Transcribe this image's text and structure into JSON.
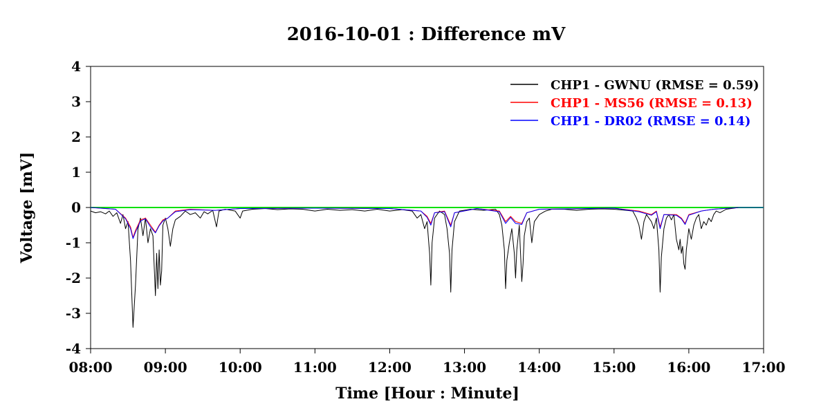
{
  "chart_data": {
    "type": "line",
    "title": "2016-10-01 : Difference mV",
    "xlabel": "Time  [Hour : Minute]",
    "ylabel": "Voltage  [mV]",
    "xlim": [
      "08:00",
      "17:00"
    ],
    "ylim": [
      -4,
      4
    ],
    "x_ticks": [
      "08:00",
      "09:00",
      "10:00",
      "11:00",
      "12:00",
      "13:00",
      "14:00",
      "15:00",
      "16:00",
      "17:00"
    ],
    "y_ticks": [
      "4",
      "3",
      "2",
      "1",
      "0",
      "-1",
      "-2",
      "-3",
      "-4"
    ],
    "zero_line_color": "#00e000",
    "legend_position": "top-right",
    "grid": false,
    "series": [
      {
        "name": "CHP1 - GWNU (RMSE = 0.59)",
        "color": "#000000",
        "points": [
          [
            "08:00",
            -0.1
          ],
          [
            "08:04",
            -0.15
          ],
          [
            "08:08",
            -0.12
          ],
          [
            "08:12",
            -0.18
          ],
          [
            "08:15",
            -0.1
          ],
          [
            "08:18",
            -0.25
          ],
          [
            "08:21",
            -0.15
          ],
          [
            "08:24",
            -0.45
          ],
          [
            "08:26",
            -0.2
          ],
          [
            "08:28",
            -0.6
          ],
          [
            "08:30",
            -0.4
          ],
          [
            "08:32",
            -1.5
          ],
          [
            "08:34",
            -3.4
          ],
          [
            "08:36",
            -2.2
          ],
          [
            "08:38",
            -0.6
          ],
          [
            "08:40",
            -0.3
          ],
          [
            "08:42",
            -0.8
          ],
          [
            "08:44",
            -0.3
          ],
          [
            "08:46",
            -1.0
          ],
          [
            "08:48",
            -0.6
          ],
          [
            "08:50",
            -0.8
          ],
          [
            "08:52",
            -2.5
          ],
          [
            "08:53",
            -1.3
          ],
          [
            "08:54",
            -2.3
          ],
          [
            "08:55",
            -1.2
          ],
          [
            "08:56",
            -2.2
          ],
          [
            "08:57",
            -1.8
          ],
          [
            "08:58",
            -0.5
          ],
          [
            "09:00",
            -0.3
          ],
          [
            "09:02",
            -0.6
          ],
          [
            "09:04",
            -1.1
          ],
          [
            "09:06",
            -0.6
          ],
          [
            "09:08",
            -0.35
          ],
          [
            "09:12",
            -0.25
          ],
          [
            "09:16",
            -0.1
          ],
          [
            "09:20",
            -0.2
          ],
          [
            "09:24",
            -0.15
          ],
          [
            "09:28",
            -0.3
          ],
          [
            "09:31",
            -0.12
          ],
          [
            "09:34",
            -0.18
          ],
          [
            "09:38",
            -0.08
          ],
          [
            "09:41",
            -0.55
          ],
          [
            "09:43",
            -0.1
          ],
          [
            "09:48",
            -0.05
          ],
          [
            "09:56",
            -0.1
          ],
          [
            "10:00",
            -0.3
          ],
          [
            "10:02",
            -0.1
          ],
          [
            "10:10",
            -0.05
          ],
          [
            "10:20",
            -0.03
          ],
          [
            "10:30",
            -0.06
          ],
          [
            "10:40",
            -0.04
          ],
          [
            "10:50",
            -0.05
          ],
          [
            "11:00",
            -0.1
          ],
          [
            "11:10",
            -0.05
          ],
          [
            "11:20",
            -0.08
          ],
          [
            "11:30",
            -0.06
          ],
          [
            "11:40",
            -0.1
          ],
          [
            "11:50",
            -0.05
          ],
          [
            "12:00",
            -0.1
          ],
          [
            "12:10",
            -0.06
          ],
          [
            "12:18",
            -0.1
          ],
          [
            "12:22",
            -0.3
          ],
          [
            "12:25",
            -0.2
          ],
          [
            "12:28",
            -0.6
          ],
          [
            "12:30",
            -0.4
          ],
          [
            "12:32",
            -1.3
          ],
          [
            "12:33",
            -2.2
          ],
          [
            "12:34",
            -1.0
          ],
          [
            "12:36",
            -0.3
          ],
          [
            "12:40",
            -0.1
          ],
          [
            "12:44",
            -0.2
          ],
          [
            "12:46",
            -0.6
          ],
          [
            "12:48",
            -1.3
          ],
          [
            "12:49",
            -2.4
          ],
          [
            "12:50",
            -1.2
          ],
          [
            "12:52",
            -0.4
          ],
          [
            "12:56",
            -0.1
          ],
          [
            "13:05",
            -0.05
          ],
          [
            "13:15",
            -0.08
          ],
          [
            "13:25",
            -0.05
          ],
          [
            "13:28",
            -0.2
          ],
          [
            "13:30",
            -0.5
          ],
          [
            "13:32",
            -1.2
          ],
          [
            "13:33",
            -2.3
          ],
          [
            "13:34",
            -1.5
          ],
          [
            "13:36",
            -1.0
          ],
          [
            "13:38",
            -0.6
          ],
          [
            "13:40",
            -1.3
          ],
          [
            "13:41",
            -2.0
          ],
          [
            "13:42",
            -1.2
          ],
          [
            "13:44",
            -0.5
          ],
          [
            "13:46",
            -2.1
          ],
          [
            "13:47",
            -1.6
          ],
          [
            "13:48",
            -0.8
          ],
          [
            "13:50",
            -0.4
          ],
          [
            "13:52",
            -0.3
          ],
          [
            "13:54",
            -1.0
          ],
          [
            "13:56",
            -0.4
          ],
          [
            "14:00",
            -0.2
          ],
          [
            "14:05",
            -0.1
          ],
          [
            "14:10",
            -0.05
          ],
          [
            "14:20",
            -0.05
          ],
          [
            "14:30",
            -0.08
          ],
          [
            "14:40",
            -0.05
          ],
          [
            "14:50",
            -0.04
          ],
          [
            "15:00",
            -0.05
          ],
          [
            "15:10",
            -0.08
          ],
          [
            "15:15",
            -0.1
          ],
          [
            "15:18",
            -0.3
          ],
          [
            "15:20",
            -0.5
          ],
          [
            "15:22",
            -0.9
          ],
          [
            "15:24",
            -0.4
          ],
          [
            "15:26",
            -0.2
          ],
          [
            "15:30",
            -0.4
          ],
          [
            "15:32",
            -0.6
          ],
          [
            "15:34",
            -0.3
          ],
          [
            "15:36",
            -1.2
          ],
          [
            "15:37",
            -2.4
          ],
          [
            "15:38",
            -1.4
          ],
          [
            "15:40",
            -0.6
          ],
          [
            "15:42",
            -0.3
          ],
          [
            "15:44",
            -0.2
          ],
          [
            "15:46",
            -0.35
          ],
          [
            "15:48",
            -0.2
          ],
          [
            "15:50",
            -0.9
          ],
          [
            "15:52",
            -1.2
          ],
          [
            "15:53",
            -0.9
          ],
          [
            "15:54",
            -1.3
          ],
          [
            "15:55",
            -1.1
          ],
          [
            "15:56",
            -1.6
          ],
          [
            "15:57",
            -1.75
          ],
          [
            "15:58",
            -1.2
          ],
          [
            "16:00",
            -0.6
          ],
          [
            "16:02",
            -0.9
          ],
          [
            "16:04",
            -0.5
          ],
          [
            "16:06",
            -0.3
          ],
          [
            "16:08",
            -0.2
          ],
          [
            "16:10",
            -0.6
          ],
          [
            "16:12",
            -0.4
          ],
          [
            "16:14",
            -0.5
          ],
          [
            "16:16",
            -0.3
          ],
          [
            "16:18",
            -0.4
          ],
          [
            "16:20",
            -0.2
          ],
          [
            "16:22",
            -0.1
          ],
          [
            "16:25",
            -0.15
          ],
          [
            "16:30",
            -0.05
          ],
          [
            "16:40",
            0.0
          ],
          [
            "17:00",
            0.0
          ]
        ]
      },
      {
        "name": "CHP1 - MS56 (RMSE = 0.13)",
        "color": "#ff0000",
        "points": [
          [
            "08:00",
            0.0
          ],
          [
            "08:20",
            -0.05
          ],
          [
            "08:28",
            -0.3
          ],
          [
            "08:32",
            -0.55
          ],
          [
            "08:34",
            -0.85
          ],
          [
            "08:36",
            -0.65
          ],
          [
            "08:40",
            -0.35
          ],
          [
            "08:44",
            -0.3
          ],
          [
            "08:48",
            -0.5
          ],
          [
            "08:52",
            -0.7
          ],
          [
            "08:55",
            -0.5
          ],
          [
            "08:58",
            -0.35
          ],
          [
            "09:02",
            -0.3
          ],
          [
            "09:08",
            -0.1
          ],
          [
            "09:20",
            -0.05
          ],
          [
            "09:40",
            -0.08
          ],
          [
            "10:00",
            -0.03
          ],
          [
            "11:00",
            -0.02
          ],
          [
            "12:00",
            -0.03
          ],
          [
            "12:25",
            -0.1
          ],
          [
            "12:30",
            -0.25
          ],
          [
            "12:33",
            -0.45
          ],
          [
            "12:36",
            -0.15
          ],
          [
            "12:44",
            -0.1
          ],
          [
            "12:49",
            -0.5
          ],
          [
            "12:52",
            -0.15
          ],
          [
            "13:10",
            -0.03
          ],
          [
            "13:28",
            -0.1
          ],
          [
            "13:33",
            -0.4
          ],
          [
            "13:37",
            -0.25
          ],
          [
            "13:41",
            -0.4
          ],
          [
            "13:46",
            -0.45
          ],
          [
            "13:50",
            -0.15
          ],
          [
            "14:00",
            -0.05
          ],
          [
            "15:00",
            -0.02
          ],
          [
            "15:20",
            -0.1
          ],
          [
            "15:30",
            -0.2
          ],
          [
            "15:34",
            -0.1
          ],
          [
            "15:37",
            -0.55
          ],
          [
            "15:40",
            -0.2
          ],
          [
            "15:50",
            -0.2
          ],
          [
            "15:54",
            -0.3
          ],
          [
            "15:57",
            -0.45
          ],
          [
            "16:00",
            -0.2
          ],
          [
            "16:10",
            -0.1
          ],
          [
            "16:20",
            -0.05
          ],
          [
            "16:40",
            0.0
          ],
          [
            "17:00",
            0.0
          ]
        ]
      },
      {
        "name": "CHP1 - DR02 (RMSE = 0.14)",
        "color": "#0000ff",
        "points": [
          [
            "08:00",
            0.0
          ],
          [
            "08:20",
            -0.05
          ],
          [
            "08:28",
            -0.32
          ],
          [
            "08:32",
            -0.6
          ],
          [
            "08:34",
            -0.88
          ],
          [
            "08:36",
            -0.7
          ],
          [
            "08:40",
            -0.38
          ],
          [
            "08:44",
            -0.32
          ],
          [
            "08:48",
            -0.55
          ],
          [
            "08:52",
            -0.72
          ],
          [
            "08:55",
            -0.52
          ],
          [
            "08:58",
            -0.38
          ],
          [
            "09:02",
            -0.3
          ],
          [
            "09:08",
            -0.12
          ],
          [
            "09:20",
            -0.06
          ],
          [
            "09:40",
            -0.08
          ],
          [
            "10:00",
            -0.03
          ],
          [
            "11:00",
            -0.02
          ],
          [
            "12:00",
            -0.03
          ],
          [
            "12:25",
            -0.1
          ],
          [
            "12:30",
            -0.28
          ],
          [
            "12:33",
            -0.5
          ],
          [
            "12:36",
            -0.15
          ],
          [
            "12:44",
            -0.12
          ],
          [
            "12:49",
            -0.55
          ],
          [
            "12:52",
            -0.15
          ],
          [
            "13:10",
            -0.03
          ],
          [
            "13:28",
            -0.12
          ],
          [
            "13:33",
            -0.45
          ],
          [
            "13:37",
            -0.28
          ],
          [
            "13:41",
            -0.45
          ],
          [
            "13:46",
            -0.48
          ],
          [
            "13:50",
            -0.15
          ],
          [
            "14:00",
            -0.05
          ],
          [
            "15:00",
            -0.02
          ],
          [
            "15:20",
            -0.12
          ],
          [
            "15:30",
            -0.22
          ],
          [
            "15:34",
            -0.12
          ],
          [
            "15:37",
            -0.6
          ],
          [
            "15:40",
            -0.2
          ],
          [
            "15:50",
            -0.22
          ],
          [
            "15:54",
            -0.32
          ],
          [
            "15:57",
            -0.48
          ],
          [
            "16:00",
            -0.22
          ],
          [
            "16:10",
            -0.1
          ],
          [
            "16:20",
            -0.05
          ],
          [
            "16:40",
            0.0
          ],
          [
            "17:00",
            0.0
          ]
        ]
      }
    ]
  }
}
